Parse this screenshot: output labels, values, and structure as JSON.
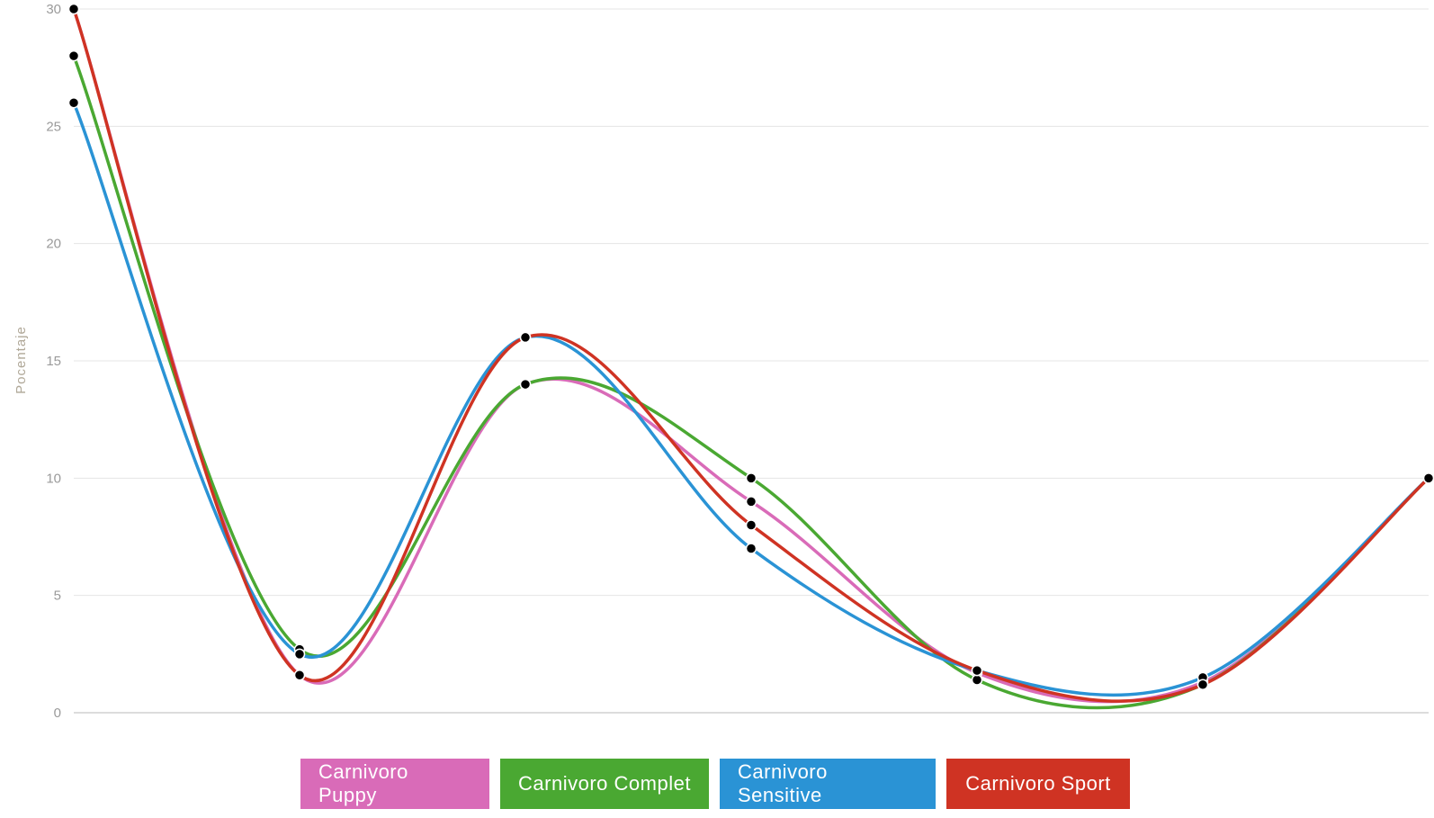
{
  "chart_data": {
    "type": "line",
    "title": "",
    "xlabel": "",
    "ylabel": "Pocentaje",
    "ylim": [
      0,
      30
    ],
    "yticks": [
      0,
      5,
      10,
      15,
      20,
      25,
      30
    ],
    "grid": true,
    "curve": "smooth",
    "legend_placement": "bottom-center",
    "x": [
      1,
      2,
      3,
      4,
      5,
      6,
      7
    ],
    "series": [
      {
        "name": "Carnivoro Puppy",
        "color": "#d96bb8",
        "values": [
          30,
          1.6,
          14,
          9,
          1.7,
          1.3,
          10
        ]
      },
      {
        "name": "Carnivoro Complet",
        "color": "#4aa832",
        "values": [
          28,
          2.7,
          14,
          10,
          1.4,
          1.2,
          10
        ]
      },
      {
        "name": "Carnivoro Sensitive",
        "color": "#2a93d5",
        "values": [
          26,
          2.5,
          16,
          7,
          1.8,
          1.5,
          10
        ]
      },
      {
        "name": "Carnivoro Sport",
        "color": "#cf3323",
        "values": [
          30,
          1.6,
          16,
          8,
          1.8,
          1.2,
          10
        ]
      }
    ]
  }
}
